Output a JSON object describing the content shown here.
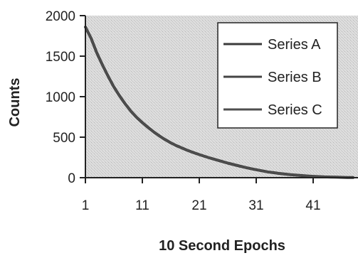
{
  "chart_data": {
    "type": "line",
    "title": "",
    "xlabel": "10 Second Epochs",
    "ylabel": "Counts",
    "x_ticks": [
      1,
      11,
      21,
      31,
      41
    ],
    "y_ticks": [
      0,
      500,
      1000,
      1500,
      2000
    ],
    "xlim": [
      1,
      48
    ],
    "ylim": [
      0,
      2000
    ],
    "grid": false,
    "background": "stippled-gray",
    "legend_position": "top-right",
    "x": [
      1,
      2,
      3,
      4,
      5,
      6,
      7,
      8,
      9,
      10,
      11,
      12,
      13,
      14,
      15,
      16,
      17,
      18,
      19,
      20,
      21,
      22,
      23,
      24,
      25,
      26,
      27,
      28,
      29,
      30,
      31,
      32,
      33,
      34,
      35,
      36,
      37,
      38,
      39,
      40,
      41,
      42,
      43,
      44,
      45,
      46,
      47,
      48
    ],
    "series": [
      {
        "name": "Series A",
        "color": "#3a3a3a",
        "values": [
          1860,
          1720,
          1540,
          1390,
          1250,
          1120,
          1010,
          910,
          820,
          745,
          680,
          620,
          565,
          515,
          470,
          430,
          395,
          365,
          335,
          310,
          285,
          262,
          240,
          220,
          200,
          180,
          162,
          145,
          128,
          112,
          98,
          85,
          72,
          62,
          53,
          45,
          38,
          32,
          26,
          21,
          17,
          13,
          10,
          8,
          6,
          4,
          3,
          2
        ]
      },
      {
        "name": "Series B",
        "color": "#444444",
        "values": [
          1860,
          1720,
          1540,
          1390,
          1250,
          1120,
          1010,
          910,
          820,
          745,
          680,
          620,
          565,
          515,
          470,
          430,
          395,
          365,
          335,
          310,
          285,
          262,
          240,
          220,
          200,
          180,
          162,
          145,
          128,
          112,
          98,
          85,
          72,
          62,
          53,
          45,
          38,
          32,
          26,
          21,
          17,
          13,
          10,
          8,
          6,
          4,
          3,
          2
        ]
      },
      {
        "name": "Series C",
        "color": "#4e4e4e",
        "values": [
          1860,
          1720,
          1540,
          1390,
          1250,
          1120,
          1010,
          910,
          820,
          745,
          680,
          620,
          565,
          515,
          470,
          430,
          395,
          365,
          335,
          310,
          285,
          262,
          240,
          220,
          200,
          180,
          162,
          145,
          128,
          112,
          98,
          85,
          72,
          62,
          53,
          45,
          38,
          32,
          26,
          21,
          17,
          13,
          10,
          8,
          6,
          4,
          3,
          2
        ]
      }
    ]
  }
}
